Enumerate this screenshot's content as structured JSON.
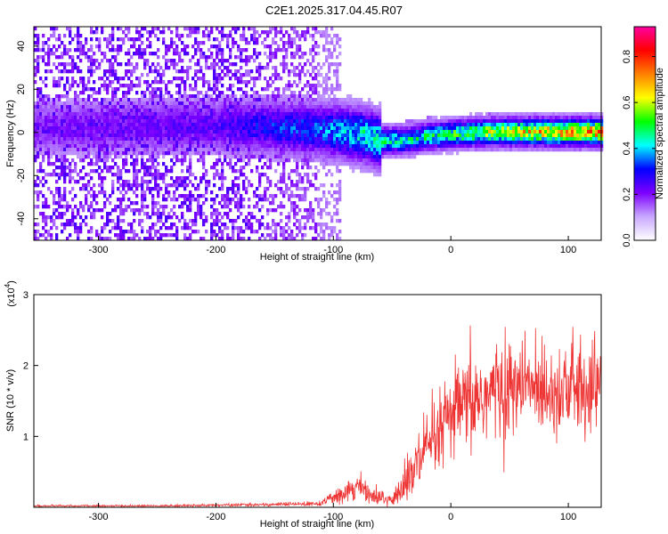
{
  "title": "C2E1.2025.317.04.45.R07",
  "chart_data": [
    {
      "type": "heatmap",
      "xlabel": "Height of straight line (km)",
      "ylabel": "Frequency (Hz)",
      "xlim": [
        -355,
        128
      ],
      "ylim": [
        -50,
        49
      ],
      "xticks": [
        -300,
        -200,
        -100,
        0,
        100
      ],
      "yticks": [
        -40,
        -20,
        0,
        20,
        40
      ],
      "colorbar": {
        "label": "Normalized spectral amplitude",
        "range": [
          0.0,
          0.93
        ],
        "ticks": [
          0.0,
          0.2,
          0.4,
          0.6,
          0.8
        ],
        "colormap": [
          "#ffffff",
          "#c8a8ff",
          "#7d00ff",
          "#0000ff",
          "#00ffff",
          "#00ff00",
          "#ffff00",
          "#ff8000",
          "#ff0000",
          "#ff00a0"
        ]
      },
      "ridge": {
        "description_points_x": [
          -355,
          -200,
          -150,
          -110,
          -80,
          -60,
          -40,
          -20,
          0,
          30,
          60,
          90,
          128
        ],
        "center_freq": [
          3,
          4,
          3,
          2,
          0,
          -3,
          -3,
          -1,
          0,
          1,
          1,
          1,
          1
        ],
        "peak_amplitude": [
          0.15,
          0.2,
          0.3,
          0.35,
          0.45,
          0.5,
          0.45,
          0.5,
          0.55,
          0.65,
          0.75,
          0.8,
          0.85
        ]
      }
    },
    {
      "type": "line",
      "xlabel": "Height of straight line (km)",
      "ylabel": "SNR (10 * v/v)",
      "scale_label": "(x10",
      "scale_exp": "4",
      "xlim": [
        -355,
        128
      ],
      "ylim": [
        0,
        3
      ],
      "xticks": [
        -300,
        -200,
        -100,
        0,
        100
      ],
      "yticks": [
        1,
        2,
        3
      ],
      "color": "#ee3333",
      "envelope": {
        "x": [
          -355,
          -250,
          -150,
          -110,
          -95,
          -80,
          -65,
          -50,
          -40,
          -25,
          -10,
          0,
          20,
          40,
          60,
          80,
          100,
          115,
          128
        ],
        "mean": [
          0.02,
          0.02,
          0.04,
          0.05,
          0.2,
          0.3,
          0.15,
          0.1,
          0.3,
          0.7,
          1.0,
          1.3,
          1.5,
          1.65,
          1.7,
          1.7,
          1.65,
          1.7,
          1.75
        ],
        "spread": [
          0.01,
          0.01,
          0.02,
          0.03,
          0.12,
          0.15,
          0.1,
          0.1,
          0.25,
          0.4,
          0.5,
          0.5,
          0.6,
          0.6,
          0.55,
          0.55,
          0.55,
          0.6,
          0.6
        ]
      }
    }
  ]
}
